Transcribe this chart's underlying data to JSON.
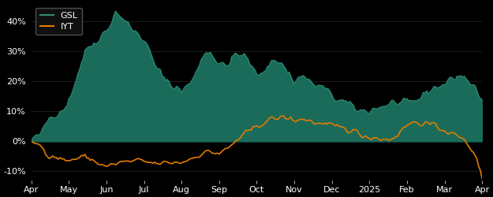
{
  "background_color": "#000000",
  "gsl_color": "#1a6b5a",
  "gsl_line_color": "#2d8c76",
  "iyt_color": "#e07b00",
  "gsl_label": "GSL",
  "iyt_label": "IYT",
  "ylim": [
    -13,
    46
  ],
  "yticks": [
    -10,
    0,
    10,
    20,
    30,
    40
  ],
  "ytick_labels": [
    "-10%",
    "0%",
    "10%",
    "20%",
    "30%",
    "40%"
  ],
  "xtick_labels": [
    "Apr",
    "May",
    "Jun",
    "Jul",
    "Aug",
    "Sep",
    "Oct",
    "Nov",
    "Dec",
    "2025",
    "Feb",
    "Mar",
    "Apr"
  ],
  "xtick_positions": [
    0,
    21,
    42,
    63,
    84,
    105,
    126,
    147,
    168,
    189,
    210,
    231,
    252
  ]
}
